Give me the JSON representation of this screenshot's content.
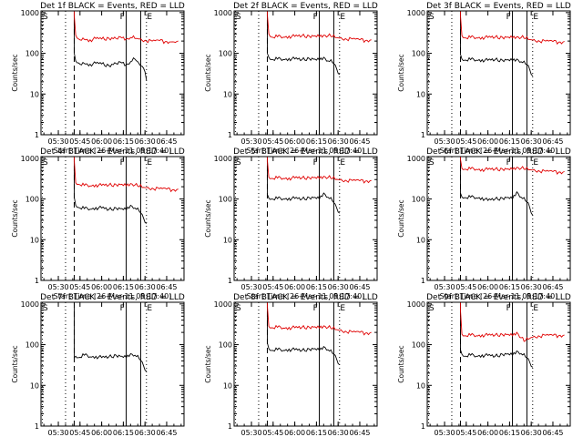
{
  "colors": {
    "events": "#000000",
    "lld": "#e00000",
    "axis": "#000000"
  },
  "shared_axis": {
    "ylabel": "Counts/sec",
    "xlabel": "Start Time (26-Mar-11 05:17:40)",
    "xticks": [
      "05:30",
      "05:45",
      "06:00",
      "06:15",
      "06:30",
      "06:45"
    ],
    "yticks": [
      "1",
      "10",
      "100",
      "1000"
    ]
  },
  "marker_labels": {
    "start": "S",
    "flare": "F",
    "end": "E"
  },
  "chart_data": [
    {
      "type": "line",
      "title": "Det 1f BLACK = Events, RED = LLD",
      "yscale": "log",
      "ylim": [
        1,
        1100
      ],
      "x_range": [
        "05:18",
        "06:57"
      ],
      "markers": {
        "dotted_a": "05:35",
        "dashed": "05:41",
        "solid_f": "06:17",
        "solid_e": "06:27",
        "dotted_end": "06:31",
        "dashed_start": "05:18",
        "dotted_start": "05:19"
      },
      "series": [
        {
          "name": "Events",
          "x": [
            "05:41",
            "05:42",
            "05:44",
            "05:46",
            "05:48",
            "05:52",
            "05:56",
            "06:00",
            "06:05",
            "06:10",
            "06:14",
            "06:17",
            "06:20",
            "06:23",
            "06:26",
            "06:28",
            "06:30",
            "06:31"
          ],
          "y": [
            100,
            65,
            58,
            52,
            56,
            54,
            57,
            55,
            50,
            56,
            58,
            52,
            62,
            72,
            55,
            48,
            35,
            22
          ]
        },
        {
          "name": "LLD",
          "x": [
            "05:41",
            "05:42",
            "05:44",
            "05:46",
            "05:48",
            "05:52",
            "05:56",
            "06:00",
            "06:05",
            "06:10",
            "06:14",
            "06:17",
            "06:20",
            "06:25",
            "06:30",
            "06:35",
            "06:40",
            "06:45",
            "06:50",
            "06:53"
          ],
          "y": [
            850,
            280,
            225,
            210,
            220,
            215,
            230,
            225,
            235,
            230,
            240,
            225,
            245,
            230,
            210,
            200,
            205,
            195,
            190,
            200
          ]
        }
      ]
    },
    {
      "type": "line",
      "title": "Det 2f BLACK = Events, RED = LLD",
      "yscale": "log",
      "ylim": [
        1,
        1100
      ],
      "x_range": [
        "05:18",
        "06:57"
      ],
      "markers": {
        "dotted_a": "05:35",
        "dashed": "05:41",
        "solid_f": "06:17",
        "solid_e": "06:27",
        "dotted_end": "06:31",
        "dashed_start": "05:18",
        "dotted_start": "05:19"
      },
      "series": [
        {
          "name": "Events",
          "x": [
            "05:41",
            "05:42",
            "05:44",
            "05:48",
            "05:52",
            "05:56",
            "06:00",
            "06:05",
            "06:10",
            "06:14",
            "06:17",
            "06:20",
            "06:23",
            "06:26",
            "06:28",
            "06:31"
          ],
          "y": [
            100,
            80,
            70,
            72,
            70,
            75,
            73,
            70,
            75,
            72,
            68,
            80,
            65,
            60,
            52,
            30
          ]
        },
        {
          "name": "LLD",
          "x": [
            "05:41",
            "05:42",
            "05:44",
            "05:48",
            "05:52",
            "05:56",
            "06:00",
            "06:05",
            "06:10",
            "06:14",
            "06:17",
            "06:20",
            "06:25",
            "06:30",
            "06:35",
            "06:40",
            "06:45",
            "06:50",
            "06:53"
          ],
          "y": [
            900,
            300,
            250,
            255,
            250,
            265,
            260,
            270,
            265,
            270,
            255,
            280,
            260,
            240,
            230,
            225,
            215,
            210,
            215
          ]
        }
      ]
    },
    {
      "type": "line",
      "title": "Det 3f BLACK = Events, RED = LLD",
      "yscale": "log",
      "ylim": [
        1,
        1100
      ],
      "x_range": [
        "05:18",
        "06:57"
      ],
      "markers": {
        "dotted_a": "05:35",
        "dashed": "05:41",
        "solid_f": "06:17",
        "solid_e": "06:27",
        "dotted_end": "06:31",
        "dashed_start": "05:18",
        "dotted_start": "05:19"
      },
      "series": [
        {
          "name": "Events",
          "x": [
            "05:41",
            "05:42",
            "05:44",
            "05:48",
            "05:52",
            "05:56",
            "06:00",
            "06:05",
            "06:10",
            "06:14",
            "06:17",
            "06:20",
            "06:23",
            "06:26",
            "06:28",
            "06:31"
          ],
          "y": [
            95,
            72,
            68,
            70,
            68,
            70,
            67,
            70,
            68,
            70,
            66,
            72,
            62,
            55,
            50,
            28
          ]
        },
        {
          "name": "LLD",
          "x": [
            "05:41",
            "05:42",
            "05:44",
            "05:48",
            "05:52",
            "05:56",
            "06:00",
            "06:05",
            "06:10",
            "06:14",
            "06:17",
            "06:20",
            "06:25",
            "06:30",
            "06:35",
            "06:40",
            "06:45",
            "06:50",
            "06:53"
          ],
          "y": [
            850,
            270,
            240,
            245,
            240,
            250,
            245,
            250,
            248,
            252,
            240,
            255,
            235,
            215,
            205,
            200,
            195,
            190,
            195
          ]
        }
      ]
    },
    {
      "type": "line",
      "title": "Det 4f BLACK = Events, RED = LLD",
      "yscale": "log",
      "ylim": [
        1,
        1100
      ],
      "x_range": [
        "05:18",
        "06:57"
      ],
      "markers": {
        "dotted_a": "05:35",
        "dashed": "05:41",
        "solid_f": "06:17",
        "solid_e": "06:27",
        "dotted_end": "06:31",
        "dashed_start": "05:18",
        "dotted_start": "05:19"
      },
      "series": [
        {
          "name": "Events",
          "x": [
            "05:41",
            "05:42",
            "05:44",
            "05:48",
            "05:52",
            "05:56",
            "06:00",
            "06:05",
            "06:10",
            "06:14",
            "06:17",
            "06:20",
            "06:23",
            "06:26",
            "06:28",
            "06:31"
          ],
          "y": [
            110,
            70,
            62,
            58,
            56,
            62,
            60,
            55,
            60,
            58,
            54,
            70,
            60,
            50,
            42,
            25
          ]
        },
        {
          "name": "LLD",
          "x": [
            "05:41",
            "05:42",
            "05:44",
            "05:48",
            "05:52",
            "05:56",
            "06:00",
            "06:05",
            "06:10",
            "06:14",
            "06:17",
            "06:20",
            "06:25",
            "06:30",
            "06:35",
            "06:40",
            "06:45",
            "06:50",
            "06:53"
          ],
          "y": [
            900,
            250,
            230,
            215,
            210,
            225,
            215,
            220,
            225,
            230,
            210,
            240,
            205,
            190,
            185,
            180,
            175,
            170,
            175
          ]
        }
      ]
    },
    {
      "type": "line",
      "title": "Det 5f BLACK = Events, RED = LLD",
      "yscale": "log",
      "ylim": [
        1,
        1100
      ],
      "x_range": [
        "05:18",
        "06:57"
      ],
      "markers": {
        "dotted_a": "05:35",
        "dashed": "05:41",
        "solid_f": "06:17",
        "solid_e": "06:27",
        "dotted_end": "06:31",
        "dashed_start": "05:18",
        "dotted_start": "05:19"
      },
      "series": [
        {
          "name": "Events",
          "x": [
            "05:41",
            "05:42",
            "05:44",
            "05:48",
            "05:52",
            "05:56",
            "06:00",
            "06:05",
            "06:10",
            "06:14",
            "06:17",
            "06:20",
            "06:23",
            "06:26",
            "06:28",
            "06:31"
          ],
          "y": [
            130,
            105,
            100,
            102,
            100,
            105,
            103,
            100,
            108,
            110,
            100,
            140,
            110,
            90,
            75,
            45
          ]
        },
        {
          "name": "LLD",
          "x": [
            "05:41",
            "05:42",
            "05:44",
            "05:48",
            "05:52",
            "05:56",
            "06:00",
            "06:05",
            "06:10",
            "06:14",
            "06:17",
            "06:20",
            "06:25",
            "06:30",
            "06:35",
            "06:40",
            "06:45",
            "06:50",
            "06:53"
          ],
          "y": [
            900,
            340,
            320,
            325,
            320,
            330,
            328,
            330,
            335,
            340,
            320,
            360,
            320,
            300,
            290,
            285,
            280,
            280,
            285
          ]
        }
      ]
    },
    {
      "type": "line",
      "title": "Det 6f BLACK = Events, RED = LLD",
      "yscale": "log",
      "ylim": [
        1,
        1100
      ],
      "x_range": [
        "05:18",
        "06:57"
      ],
      "markers": {
        "dotted_a": "05:35",
        "dashed": "05:41",
        "solid_f": "06:17",
        "solid_e": "06:27",
        "dotted_end": "06:31",
        "dashed_start": "05:18",
        "dotted_start": "05:19"
      },
      "series": [
        {
          "name": "Events",
          "x": [
            "05:41",
            "05:42",
            "05:44",
            "05:48",
            "05:52",
            "05:56",
            "06:00",
            "06:05",
            "06:10",
            "06:14",
            "06:17",
            "06:20",
            "06:23",
            "06:26",
            "06:28",
            "06:31"
          ],
          "y": [
            140,
            112,
            108,
            110,
            106,
            108,
            92,
            100,
            105,
            110,
            100,
            150,
            110,
            90,
            80,
            40
          ]
        },
        {
          "name": "LLD",
          "x": [
            "05:41",
            "05:42",
            "05:44",
            "05:48",
            "05:52",
            "05:56",
            "06:00",
            "06:05",
            "06:10",
            "06:14",
            "06:17",
            "06:20",
            "06:25",
            "06:30",
            "06:35",
            "06:40",
            "06:45",
            "06:50",
            "06:53"
          ],
          "y": [
            950,
            560,
            540,
            545,
            535,
            540,
            530,
            540,
            545,
            550,
            530,
            600,
            540,
            520,
            500,
            480,
            470,
            460,
            470
          ]
        }
      ]
    },
    {
      "type": "line",
      "title": "Det 7f BLACK = Events, RED = LLD",
      "yscale": "log",
      "ylim": [
        1,
        1100
      ],
      "x_range": [
        "05:18",
        "06:57"
      ],
      "markers": {
        "dotted_a": "05:35",
        "dashed": "05:41",
        "solid_f": "06:17",
        "solid_e": "06:27",
        "dotted_end": "06:31",
        "dashed_start": "05:18",
        "dotted_start": "05:19"
      },
      "series": [
        {
          "name": "Events",
          "x": [
            "05:41",
            "05:42",
            "05:44",
            "05:48",
            "05:52",
            "05:56",
            "06:00",
            "06:05",
            "06:10",
            "06:14",
            "06:17",
            "06:20",
            "06:23",
            "06:26",
            "06:28",
            "06:31"
          ],
          "y": [
            48,
            52,
            48,
            55,
            50,
            52,
            48,
            50,
            55,
            52,
            48,
            60,
            55,
            45,
            38,
            22
          ]
        }
      ]
    },
    {
      "type": "line",
      "title": "Det 8f BLACK = Events, RED = LLD",
      "yscale": "log",
      "ylim": [
        1,
        1100
      ],
      "x_range": [
        "05:18",
        "06:57"
      ],
      "markers": {
        "dotted_a": "05:35",
        "dashed": "05:41",
        "solid_f": "06:17",
        "solid_e": "06:27",
        "dotted_end": "06:31",
        "dashed_start": "05:18",
        "dotted_start": "05:19"
      },
      "series": [
        {
          "name": "Events",
          "x": [
            "05:41",
            "05:42",
            "05:44",
            "05:48",
            "05:52",
            "05:56",
            "06:00",
            "06:05",
            "06:10",
            "06:14",
            "06:17",
            "06:20",
            "06:23",
            "06:26",
            "06:28",
            "06:31"
          ],
          "y": [
            110,
            80,
            72,
            75,
            72,
            78,
            75,
            72,
            78,
            80,
            72,
            90,
            75,
            62,
            55,
            32
          ]
        },
        {
          "name": "LLD",
          "x": [
            "05:41",
            "05:42",
            "05:44",
            "05:48",
            "05:52",
            "05:56",
            "06:00",
            "06:05",
            "06:10",
            "06:14",
            "06:17",
            "06:20",
            "06:25",
            "06:30",
            "06:35",
            "06:40",
            "06:45",
            "06:50",
            "06:53"
          ],
          "y": [
            900,
            280,
            260,
            265,
            255,
            265,
            260,
            265,
            270,
            275,
            255,
            290,
            250,
            230,
            215,
            205,
            200,
            195,
            200
          ]
        }
      ]
    },
    {
      "type": "line",
      "title": "Det 9f BLACK = Events, RED = LLD",
      "yscale": "log",
      "ylim": [
        1,
        1100
      ],
      "x_range": [
        "05:18",
        "06:57"
      ],
      "markers": {
        "dotted_a": "05:35",
        "dashed": "05:41",
        "solid_f": "06:17",
        "solid_e": "06:27",
        "dotted_end": "06:31",
        "dashed_start": "05:18",
        "dotted_start": "05:19"
      },
      "series": [
        {
          "name": "Events",
          "x": [
            "05:41",
            "05:42",
            "05:44",
            "05:48",
            "05:52",
            "05:56",
            "06:00",
            "06:05",
            "06:10",
            "06:14",
            "06:17",
            "06:20",
            "06:23",
            "06:26",
            "06:28",
            "06:31"
          ],
          "y": [
            75,
            58,
            52,
            55,
            52,
            56,
            54,
            52,
            58,
            60,
            55,
            70,
            60,
            50,
            45,
            28
          ]
        },
        {
          "name": "LLD",
          "x": [
            "05:41",
            "05:42",
            "05:44",
            "05:48",
            "05:52",
            "05:56",
            "06:00",
            "06:05",
            "06:10",
            "06:14",
            "06:17",
            "06:20",
            "06:25",
            "06:30",
            "06:35",
            "06:40",
            "06:45",
            "06:50",
            "06:53"
          ],
          "y": [
            700,
            180,
            165,
            170,
            165,
            175,
            170,
            172,
            178,
            180,
            165,
            200,
            120,
            150,
            165,
            170,
            168,
            170,
            172
          ]
        }
      ]
    }
  ]
}
